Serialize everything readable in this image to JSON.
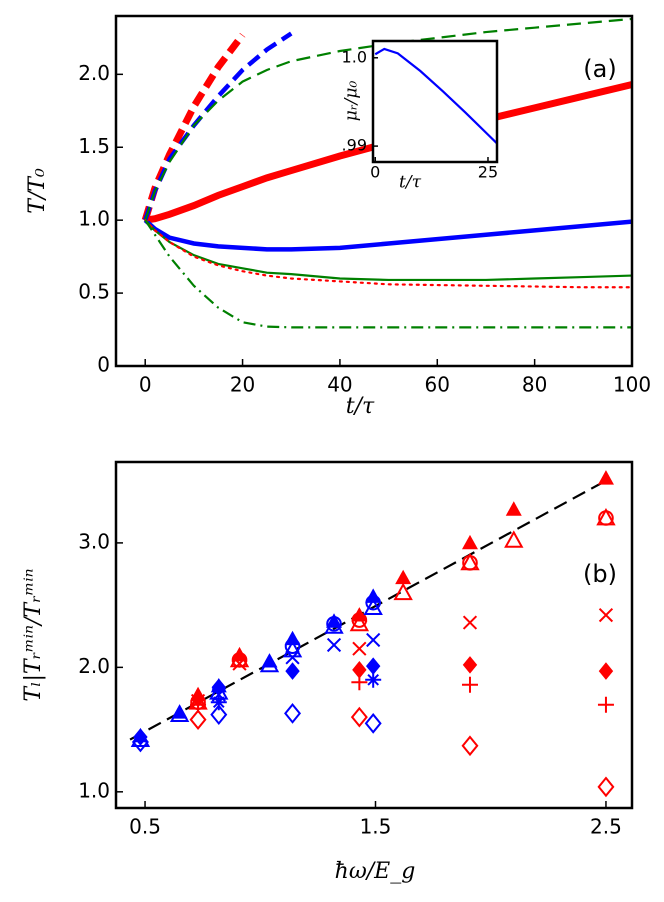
{
  "chart_data": [
    {
      "type": "line",
      "annotation": "(a)",
      "xlabel": "t/τ",
      "ylabel": "T/T₀",
      "xlim": [
        -6,
        100
      ],
      "ylim": [
        0,
        2.4
      ],
      "xticks": [
        0,
        20,
        40,
        60,
        80,
        100
      ],
      "yticks": [
        0,
        0.5,
        {
          "value": 1,
          "label": "1.0"
        },
        1.5,
        {
          "value": 2,
          "label": "2.0"
        }
      ],
      "x": [
        0,
        2,
        5,
        10,
        15,
        20,
        25,
        30,
        40,
        50,
        60,
        70,
        80,
        90,
        100
      ],
      "series": [
        {
          "color": "#ff0000",
          "linestyle": "solid",
          "weight": "heavy",
          "values": [
            1.0,
            1.01,
            1.04,
            1.1,
            1.17,
            1.23,
            1.29,
            1.34,
            1.44,
            1.53,
            1.61,
            1.69,
            1.77,
            1.85,
            1.93
          ]
        },
        {
          "color": "#0000ff",
          "linestyle": "solid",
          "weight": "thick",
          "values": [
            1.0,
            0.94,
            0.88,
            0.84,
            0.82,
            0.81,
            0.8,
            0.8,
            0.81,
            0.84,
            0.87,
            0.9,
            0.93,
            0.96,
            0.99
          ]
        },
        {
          "color": "#ff0000",
          "linestyle": "dashed",
          "weight": "heavy",
          "values": [
            1.0,
            1.22,
            1.45,
            1.78,
            2.05,
            2.27,
            null,
            null,
            null,
            null,
            null,
            null,
            null,
            null,
            null
          ]
        },
        {
          "color": "#0000ff",
          "linestyle": "dashed",
          "weight": "thick",
          "values": [
            1.0,
            1.2,
            1.42,
            1.65,
            1.85,
            2.03,
            2.17,
            2.28,
            null,
            null,
            null,
            null,
            null,
            null,
            null
          ]
        },
        {
          "color": "#008000",
          "linestyle": "dashed",
          "weight": "thin",
          "values": [
            1.0,
            1.2,
            1.4,
            1.65,
            1.82,
            1.95,
            2.03,
            2.09,
            2.16,
            2.21,
            2.25,
            2.29,
            2.32,
            2.35,
            2.38
          ]
        },
        {
          "color": "#008000",
          "linestyle": "solid",
          "weight": "thin",
          "values": [
            1.0,
            0.93,
            0.85,
            0.76,
            0.7,
            0.67,
            0.64,
            0.63,
            0.6,
            0.59,
            0.59,
            0.59,
            0.6,
            0.61,
            0.62
          ]
        },
        {
          "color": "#ff0000",
          "linestyle": "dotted",
          "weight": "thin",
          "values": [
            1.0,
            0.93,
            0.85,
            0.75,
            0.69,
            0.65,
            0.62,
            0.6,
            0.58,
            0.56,
            0.555,
            0.55,
            0.545,
            0.54,
            0.54
          ]
        },
        {
          "color": "#008000",
          "linestyle": "dashdot",
          "weight": "thin",
          "values": [
            1.0,
            0.9,
            0.75,
            0.55,
            0.4,
            0.3,
            0.27,
            0.265,
            0.265,
            0.265,
            0.265,
            0.265,
            0.265,
            0.265,
            0.265
          ]
        }
      ]
    },
    {
      "type": "line",
      "xlabel": "t/τ",
      "ylabel": "μᵣ/μ₀",
      "xlim": [
        -0.5,
        27
      ],
      "ylim": [
        0.9882,
        1.0019
      ],
      "xticks": [
        0,
        25
      ],
      "yticks": [
        {
          "value": 0.99,
          "label": ".99"
        },
        {
          "value": 1,
          "label": "1.0"
        }
      ],
      "x": [
        0,
        2,
        5,
        10,
        15,
        20,
        25,
        27
      ],
      "series": [
        {
          "color": "#0000ff",
          "linestyle": "solid",
          "weight": "thin",
          "values": [
            1.0004,
            1.001,
            1.0005,
            0.9985,
            0.9962,
            0.9938,
            0.9913,
            0.9903
          ]
        }
      ]
    },
    {
      "type": "scatter",
      "annotation": "(b)",
      "xlabel": "ħω/E_g",
      "ylabel": "Tₗ|Tᵣᵐⁱⁿ/Tᵣᵐⁱⁿ",
      "xlim": [
        0.374,
        2.613
      ],
      "ylim": [
        0.87,
        3.65
      ],
      "xticks": [
        0.5,
        1.5,
        2.5
      ],
      "yticks": [
        {
          "value": 1,
          "label": "1.0"
        },
        {
          "value": 2,
          "label": "2.0"
        },
        {
          "value": 3,
          "label": "3.0"
        }
      ],
      "series": [
        {
          "color": "#000000",
          "linestyle": "dashed",
          "x": [
            0.435,
            2.5
          ],
          "values": [
            1.42,
            3.5
          ]
        },
        {
          "color": "#ff0000",
          "marker": "triangle-filled",
          "x": [
            0.73,
            0.91,
            1.43,
            1.62,
            1.91,
            2.1,
            2.5
          ],
          "values": [
            1.78,
            2.1,
            2.42,
            2.72,
            3.0,
            3.27,
            3.52
          ]
        },
        {
          "color": "#ff0000",
          "marker": "triangle-open",
          "x": [
            0.73,
            0.91,
            1.43,
            1.62,
            1.91,
            2.1,
            2.5
          ],
          "values": [
            1.72,
            2.06,
            2.35,
            2.6,
            2.84,
            3.02,
            3.2
          ]
        },
        {
          "color": "#ff0000",
          "marker": "circle-open",
          "x": [
            0.73,
            0.91,
            1.43,
            1.91,
            2.5
          ],
          "values": [
            1.72,
            2.06,
            2.38,
            2.84,
            3.2
          ]
        },
        {
          "color": "#ff0000",
          "marker": "cross",
          "x": [
            0.73,
            0.91,
            1.43,
            1.91,
            2.5
          ],
          "values": [
            1.73,
            2.03,
            2.15,
            2.36,
            2.42
          ]
        },
        {
          "color": "#ff0000",
          "marker": "diamond-filled",
          "x": [
            0.73,
            1.43,
            1.91,
            2.5
          ],
          "values": [
            1.75,
            1.98,
            2.02,
            1.97
          ]
        },
        {
          "color": "#ff0000",
          "marker": "plus",
          "x": [
            0.73,
            1.43,
            1.91,
            2.5
          ],
          "values": [
            1.7,
            1.88,
            1.86,
            1.7
          ]
        },
        {
          "color": "#ff0000",
          "marker": "diamond-open",
          "x": [
            0.73,
            1.43,
            1.91,
            2.5
          ],
          "values": [
            1.58,
            1.6,
            1.37,
            1.04
          ]
        },
        {
          "color": "#0000ff",
          "marker": "triangle-filled",
          "x": [
            0.48,
            0.65,
            0.82,
            1.04,
            1.14,
            1.32,
            1.49
          ],
          "values": [
            1.45,
            1.64,
            1.85,
            2.05,
            2.23,
            2.37,
            2.57
          ]
        },
        {
          "color": "#0000ff",
          "marker": "triangle-open",
          "x": [
            0.48,
            0.65,
            0.82,
            1.04,
            1.14,
            1.32,
            1.49
          ],
          "values": [
            1.42,
            1.62,
            1.8,
            2.02,
            2.14,
            2.33,
            2.48
          ]
        },
        {
          "color": "#0000ff",
          "marker": "circle-open",
          "x": [
            1.14,
            1.32,
            1.49
          ],
          "values": [
            2.17,
            2.35,
            2.52
          ]
        },
        {
          "color": "#0000ff",
          "marker": "cross",
          "x": [
            0.82,
            1.14,
            1.32,
            1.49
          ],
          "values": [
            1.78,
            2.08,
            2.18,
            2.22
          ]
        },
        {
          "color": "#0000ff",
          "marker": "diamond-filled",
          "x": [
            0.48,
            0.82,
            1.14,
            1.49
          ],
          "values": [
            1.44,
            1.84,
            1.97,
            2.01
          ]
        },
        {
          "color": "#0000ff",
          "marker": "asterisk",
          "x": [
            0.82,
            1.49
          ],
          "values": [
            1.72,
            1.9
          ]
        },
        {
          "color": "#0000ff",
          "marker": "diamond-open",
          "x": [
            0.48,
            0.82,
            1.14,
            1.49
          ],
          "values": [
            1.4,
            1.62,
            1.63,
            1.55
          ]
        }
      ]
    }
  ]
}
